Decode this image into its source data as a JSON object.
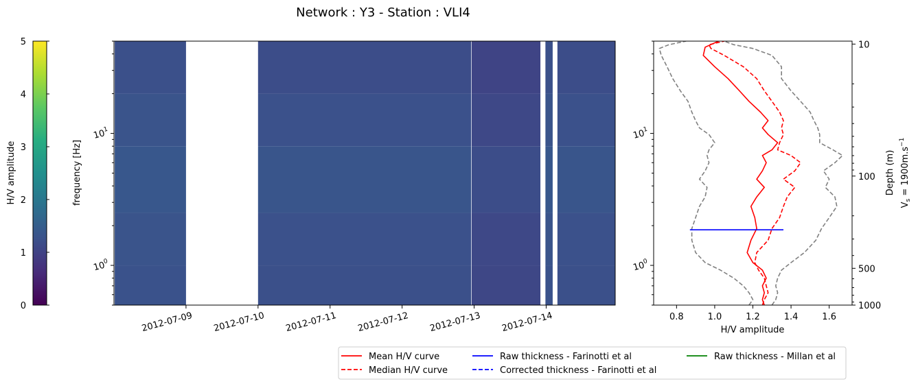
{
  "title": "Network : Y3 - Station : VLI4",
  "colorbar": {
    "label": "H/V amplitude",
    "ticks": [
      "0",
      "1",
      "2",
      "3",
      "4",
      "5"
    ],
    "colormap": [
      "#440154",
      "#472c7a",
      "#3b518b",
      "#2c718e",
      "#21908d",
      "#27ad81",
      "#5cc863",
      "#aadc32",
      "#fde725"
    ]
  },
  "spectrogram": {
    "ylabel": "frequency [Hz]",
    "xticks": [
      "2012-07-09",
      "2012-07-10",
      "2012-07-11",
      "2012-07-12",
      "2012-07-13",
      "2012-07-14"
    ],
    "yticks": [
      {
        "base": "10",
        "exp": "0"
      },
      {
        "base": "10",
        "exp": "1"
      }
    ]
  },
  "hv_panel": {
    "xlabel": "H/V amplitude",
    "xticks": [
      "0.8",
      "1.0",
      "1.2",
      "1.4",
      "1.6"
    ],
    "yticks": [
      {
        "base": "10",
        "exp": "0"
      },
      {
        "base": "10",
        "exp": "1"
      }
    ],
    "depth_ticks": [
      "10",
      "100",
      "500",
      "1000"
    ],
    "depth_label": "Depth (m)",
    "vs_label_main": "V",
    "vs_label_sub": "s",
    "vs_label_rest": " = 1900m.s",
    "vs_label_sup": "−1"
  },
  "legend": {
    "items": [
      {
        "label": "Mean H/V curve",
        "color": "#ff0000",
        "dash": false
      },
      {
        "label": "Median H/V curve",
        "color": "#ff0000",
        "dash": true
      },
      {
        "label": "Raw thickness - Farinotti et al",
        "color": "#0000ff",
        "dash": false
      },
      {
        "label": "Corrected thickness - Farinotti et al",
        "color": "#0000ff",
        "dash": true
      },
      {
        "label": "Raw thickness - Millan et al",
        "color": "#008000",
        "dash": false
      }
    ]
  },
  "chart_data": [
    {
      "type": "heatmap",
      "title": "Network : Y3 - Station : VLI4",
      "xlabel": "",
      "ylabel": "frequency [Hz]",
      "yscale": "log",
      "ylim": [
        0.5,
        50
      ],
      "xlim": [
        "2012-07-08T00:00",
        "2012-07-14T23:00"
      ],
      "x_type": "date",
      "color_label": "H/V amplitude",
      "color_range": [
        0,
        5
      ],
      "data_blocks": [
        {
          "start": "2012-07-08T00:15",
          "end": "2012-07-09T00:00",
          "level": 1.3
        },
        {
          "start": "2012-07-10T00:00",
          "end": "2012-07-12T23:00",
          "level": 1.2
        },
        {
          "start": "2012-07-12T23:10",
          "end": "2012-07-13T22:05",
          "level": 0.9
        },
        {
          "start": "2012-07-13T23:45",
          "end": "2012-07-14T02:10",
          "level": 1.3
        },
        {
          "start": "2012-07-14T03:45",
          "end": "2012-07-14T23:00",
          "level": 1.2
        }
      ],
      "frequency_bands": [
        {
          "f_min": 0.5,
          "f_max": 1.0,
          "level": 1.25
        },
        {
          "f_min": 1.0,
          "f_max": 2.5,
          "level": 1.3
        },
        {
          "f_min": 2.5,
          "f_max": 8.0,
          "level": 1.45
        },
        {
          "f_min": 8.0,
          "f_max": 20.0,
          "level": 1.3
        },
        {
          "f_min": 20.0,
          "f_max": 50.0,
          "level": 1.15
        }
      ]
    },
    {
      "type": "line",
      "xlabel": "H/V amplitude",
      "ylabel": "",
      "xlim": [
        0.68,
        1.72
      ],
      "yscale": "log",
      "ylim": [
        0.5,
        50
      ],
      "secondary_ylabel": "Depth (m) / Vs = 1900m.s−1",
      "secondary_ticks": [
        10,
        100,
        500,
        1000
      ],
      "series": [
        {
          "name": "Mean H/V curve",
          "color": "#ff0000",
          "dash": false,
          "x": [
            1.26,
            1.25,
            1.26,
            1.25,
            1.27,
            1.25,
            1.2,
            1.17,
            1.19,
            1.22,
            1.21,
            1.19,
            1.22,
            1.26,
            1.22,
            1.25,
            1.27,
            1.25,
            1.3,
            1.33,
            1.28,
            1.25,
            1.28,
            1.24,
            1.18,
            1.13,
            1.07,
            1.0,
            0.94,
            0.95,
            1.02
          ],
          "y": [
            0.5,
            0.55,
            0.62,
            0.7,
            0.8,
            0.92,
            1.05,
            1.25,
            1.55,
            1.9,
            2.3,
            2.8,
            3.3,
            3.9,
            4.5,
            5.2,
            6.0,
            6.8,
            7.5,
            8.5,
            9.8,
            11.0,
            12.5,
            14.5,
            17.5,
            21.0,
            26.0,
            32.0,
            39.0,
            45.0,
            50.0
          ]
        },
        {
          "name": "Median H/V curve",
          "color": "#ff0000",
          "dash": true,
          "x": [
            1.25,
            1.26,
            1.28,
            1.27,
            1.26,
            1.23,
            1.21,
            1.22,
            1.28,
            1.3,
            1.34,
            1.36,
            1.38,
            1.42,
            1.36,
            1.42,
            1.45,
            1.4,
            1.33,
            1.34,
            1.36,
            1.35,
            1.36,
            1.34,
            1.3,
            1.26,
            1.22,
            1.15,
            1.05,
            0.98,
            0.97,
            1.05
          ],
          "y": [
            0.5,
            0.55,
            0.62,
            0.7,
            0.8,
            0.92,
            1.05,
            1.25,
            1.55,
            1.9,
            2.3,
            2.8,
            3.3,
            3.9,
            4.5,
            5.2,
            6.0,
            6.8,
            7.5,
            8.5,
            9.8,
            11.0,
            12.5,
            14.5,
            17.5,
            21.0,
            26.0,
            32.0,
            39.0,
            44.0,
            47.0,
            50.0
          ]
        },
        {
          "name": "",
          "color": "#808080",
          "dash": true,
          "x": [
            1.18,
            1.2,
            1.18,
            1.15,
            1.1,
            1.03,
            0.95,
            0.9,
            0.88,
            0.88,
            0.9,
            0.92,
            0.95,
            0.96,
            0.92,
            0.95,
            0.97,
            0.96,
            0.97,
            1.0,
            0.97,
            0.92,
            0.9,
            0.88,
            0.86,
            0.82,
            0.78,
            0.75,
            0.72,
            0.71,
            0.76,
            0.85
          ],
          "y": [
            0.5,
            0.55,
            0.62,
            0.7,
            0.8,
            0.92,
            1.05,
            1.25,
            1.55,
            1.9,
            2.3,
            2.8,
            3.3,
            3.9,
            4.5,
            5.2,
            6.0,
            6.8,
            7.5,
            8.5,
            9.8,
            11.0,
            12.5,
            14.5,
            17.5,
            21.0,
            26.0,
            32.0,
            39.0,
            44.0,
            47.0,
            50.0
          ]
        },
        {
          "name": "",
          "color": "#808080",
          "dash": true,
          "x": [
            1.3,
            1.32,
            1.33,
            1.32,
            1.33,
            1.35,
            1.4,
            1.47,
            1.53,
            1.56,
            1.6,
            1.64,
            1.63,
            1.58,
            1.6,
            1.57,
            1.63,
            1.67,
            1.62,
            1.55,
            1.55,
            1.54,
            1.52,
            1.5,
            1.45,
            1.4,
            1.35,
            1.35,
            1.3,
            1.2,
            1.1,
            1.05
          ],
          "y": [
            0.5,
            0.55,
            0.62,
            0.7,
            0.8,
            0.92,
            1.05,
            1.25,
            1.55,
            1.9,
            2.3,
            2.8,
            3.3,
            3.9,
            4.5,
            5.2,
            6.0,
            6.8,
            7.5,
            8.5,
            9.8,
            11.0,
            12.5,
            14.5,
            17.5,
            21.0,
            26.0,
            32.0,
            39.0,
            44.0,
            47.0,
            50.0
          ]
        },
        {
          "name": "Raw thickness - Farinotti et al",
          "color": "#0000ff",
          "dash": false,
          "x": [
            0.87,
            1.36
          ],
          "y": [
            1.86,
            1.86
          ]
        }
      ]
    }
  ]
}
